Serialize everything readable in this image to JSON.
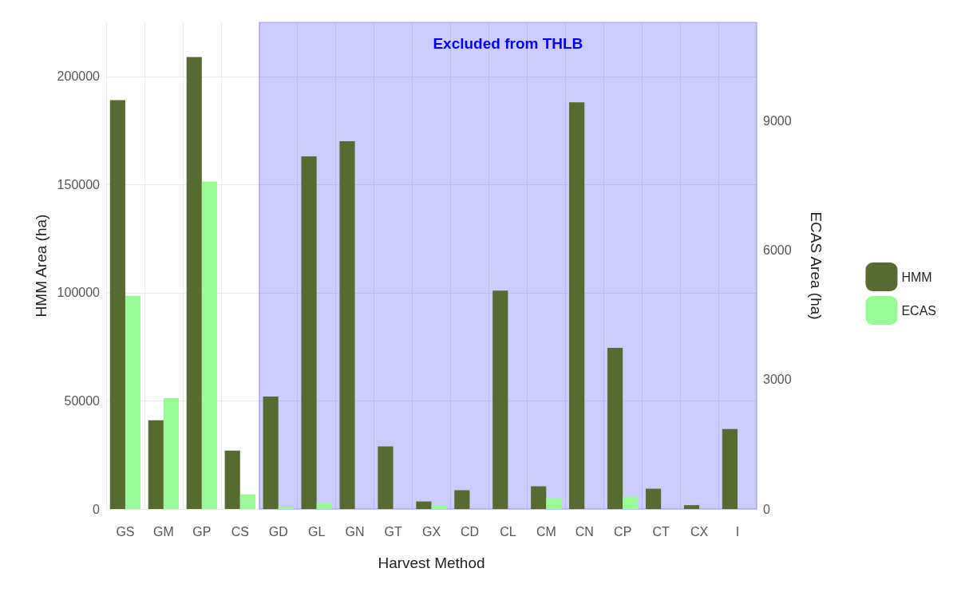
{
  "chart_data": {
    "type": "bar",
    "xlabel": "Harvest Method",
    "ylabel": "HMM Area (ha)",
    "y2label": "ECAS Area (ha)",
    "categories": [
      "GS",
      "GM",
      "GP",
      "CS",
      "GD",
      "GL",
      "GN",
      "GT",
      "GX",
      "CD",
      "CL",
      "CM",
      "CN",
      "CP",
      "CT",
      "CX",
      "I"
    ],
    "series": [
      {
        "name": "HMM",
        "color": "#556b2f",
        "values": [
          189000,
          41000,
          209000,
          27000,
          52000,
          163000,
          170000,
          29000,
          3500,
          8700,
          101000,
          10500,
          188000,
          74500,
          9400,
          1800,
          37000
        ]
      },
      {
        "name": "ECAS",
        "color": "#98fb98",
        "axis": "y2",
        "values": [
          4940,
          2570,
          7590,
          340,
          50,
          140,
          0,
          0,
          90,
          0,
          0,
          250,
          0,
          290,
          0,
          0,
          0
        ]
      }
    ],
    "ylim": [
      0,
      225000
    ],
    "yticks": [
      0,
      50000,
      100000,
      150000,
      200000
    ],
    "y2lim": [
      0,
      11280
    ],
    "y2ticks": [
      0,
      3000,
      6000,
      9000
    ],
    "bands": [
      {
        "axis": "x",
        "from": "GD",
        "to": "I",
        "label": "Excluded from THLB",
        "color": "#0000ff"
      }
    ],
    "grid": true,
    "legend": "right"
  }
}
